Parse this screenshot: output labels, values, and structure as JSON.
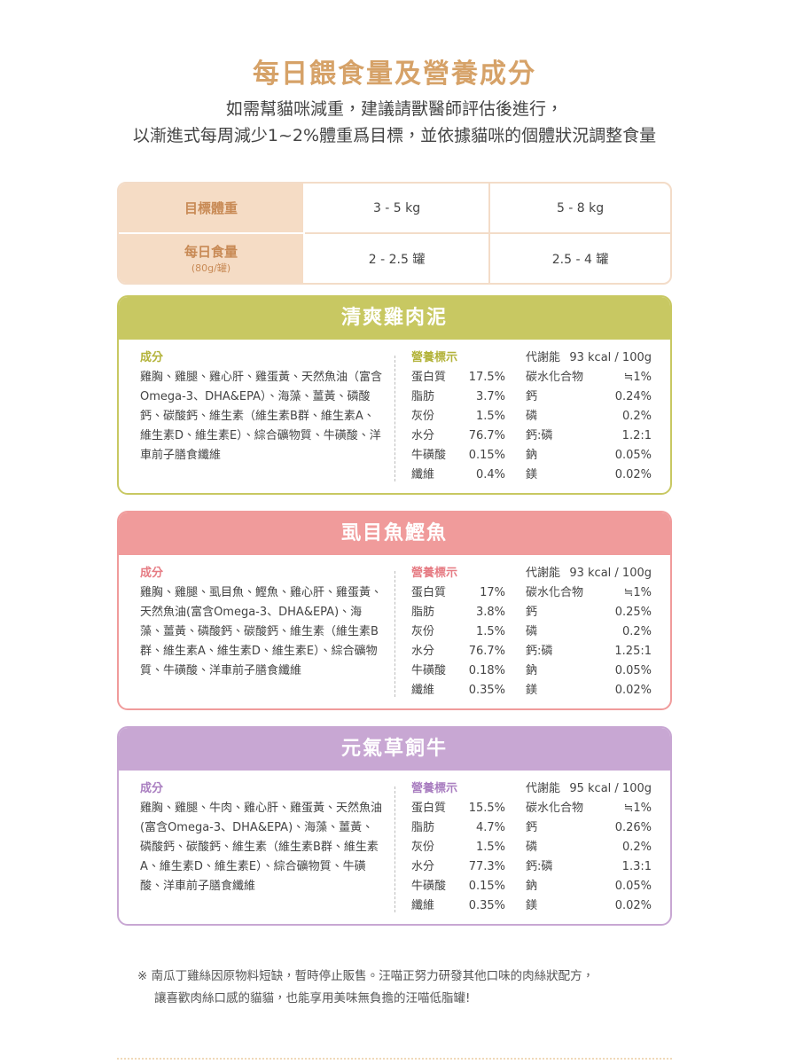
{
  "header": {
    "title": "每日餵食量及營養成分",
    "subtitle_lines": [
      "如需幫貓咪減重，建議請獸醫師評估後進行，",
      "以漸進式每周減少1~2%體重爲目標，並依據貓咪的個體狀況調整食量"
    ]
  },
  "feeding_table": {
    "rows": [
      {
        "label": "目標體重",
        "cells": [
          "3 - 5 kg",
          "5 - 8 kg"
        ]
      },
      {
        "label": "每日食量",
        "sublabel": "(80g/罐)",
        "cells": [
          "2 - 2.5 罐",
          "2.5 - 4 罐"
        ]
      }
    ]
  },
  "products": [
    {
      "name": "清爽雞肉泥",
      "ingredients_label": "成分",
      "ingredients": "雞胸、雞腿、雞心肝、雞蛋黃、天然魚油（富含Omega-3、DHA&EPA）、海藻、薑黃、磷酸鈣、碳酸鈣、維生素（維生素B群、維生素A、維生素D、維生素E）、綜合礦物質、牛磺酸、洋車前子膳食纖維",
      "nutrition_label": "營養標示",
      "energy_label": "代謝能",
      "energy": "93 kcal / 100g",
      "left": [
        [
          "蛋白質",
          "17.5%"
        ],
        [
          "脂肪",
          "3.7%"
        ],
        [
          "灰份",
          "1.5%"
        ],
        [
          "水分",
          "76.7%"
        ],
        [
          "牛磺酸",
          "0.15%"
        ],
        [
          "纖維",
          "0.4%"
        ]
      ],
      "right": [
        [
          "碳水化合物",
          "≒1%"
        ],
        [
          "鈣",
          "0.24%"
        ],
        [
          "磷",
          "0.2%"
        ],
        [
          "鈣:磷",
          "1.2:1"
        ],
        [
          "鈉",
          "0.05%"
        ],
        [
          "鎂",
          "0.02%"
        ]
      ]
    },
    {
      "name": "虱目魚鰹魚",
      "ingredients_label": "成分",
      "ingredients": "雞胸、雞腿、虱目魚、鰹魚、雞心肝、雞蛋黃、天然魚油(富含Omega-3、DHA&EPA)、海藻、薑黃、磷酸鈣、碳酸鈣、維生素（維生素B群、維生素A、維生素D、維生素E）、綜合礦物質、牛磺酸、洋車前子膳食纖維",
      "nutrition_label": "營養標示",
      "energy_label": "代謝能",
      "energy": "93 kcal / 100g",
      "left": [
        [
          "蛋白質",
          "17%"
        ],
        [
          "脂肪",
          "3.8%"
        ],
        [
          "灰份",
          "1.5%"
        ],
        [
          "水分",
          "76.7%"
        ],
        [
          "牛磺酸",
          "0.18%"
        ],
        [
          "纖維",
          "0.35%"
        ]
      ],
      "right": [
        [
          "碳水化合物",
          "≒1%"
        ],
        [
          "鈣",
          "0.25%"
        ],
        [
          "磷",
          "0.2%"
        ],
        [
          "鈣:磷",
          "1.25:1"
        ],
        [
          "鈉",
          "0.05%"
        ],
        [
          "鎂",
          "0.02%"
        ]
      ]
    },
    {
      "name": "元氣草飼牛",
      "ingredients_label": "成分",
      "ingredients": "雞胸、雞腿、牛肉、雞心肝、雞蛋黃、天然魚油(富含Omega-3、DHA&EPA)、海藻、薑黃、磷酸鈣、碳酸鈣、維生素（維生素B群、維生素A、維生素D、維生素E）、綜合礦物質、牛磺酸、洋車前子膳食纖維",
      "nutrition_label": "營養標示",
      "energy_label": "代謝能",
      "energy": "95 kcal / 100g",
      "left": [
        [
          "蛋白質",
          "15.5%"
        ],
        [
          "脂肪",
          "4.7%"
        ],
        [
          "灰份",
          "1.5%"
        ],
        [
          "水分",
          "77.3%"
        ],
        [
          "牛磺酸",
          "0.15%"
        ],
        [
          "纖維",
          "0.35%"
        ]
      ],
      "right": [
        [
          "碳水化合物",
          "≒1%"
        ],
        [
          "鈣",
          "0.26%"
        ],
        [
          "磷",
          "0.2%"
        ],
        [
          "鈣:磷",
          "1.3:1"
        ],
        [
          "鈉",
          "0.05%"
        ],
        [
          "鎂",
          "0.02%"
        ]
      ]
    }
  ],
  "footnote_lines": [
    "※ 南瓜丁雞絲因原物料短缺，暫時停止販售。汪喵正努力研發其他口味的肉絲狀配方，",
    "讓喜歡肉絲口感的貓貓，也能享用美味無負擔的汪喵低脂罐!"
  ]
}
